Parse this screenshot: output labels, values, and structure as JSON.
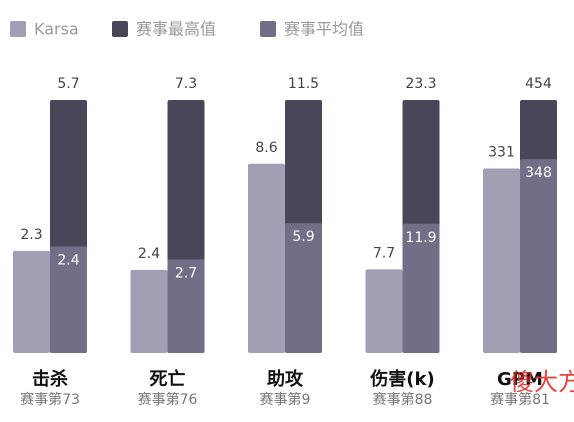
{
  "chart_data": {
    "type": "bar",
    "categories": [
      "击杀",
      "死亡",
      "助攻",
      "伤害(k)",
      "GPM"
    ],
    "subtitles": [
      "赛事第73",
      "赛事第76",
      "赛事第9",
      "赛事第88",
      "赛事第81"
    ],
    "series": [
      {
        "name": "Karsa",
        "color": "#a29eb3",
        "values": [
          2.3,
          2.4,
          8.6,
          7.7,
          331
        ]
      },
      {
        "name": "赛事最高值",
        "color": "#4a4659",
        "values": [
          5.7,
          7.3,
          11.5,
          23.3,
          454
        ]
      },
      {
        "name": "赛事平均值",
        "color": "#736e88",
        "values": [
          2.4,
          2.7,
          5.9,
          11.9,
          348
        ]
      }
    ]
  },
  "watermark": "傻大方"
}
